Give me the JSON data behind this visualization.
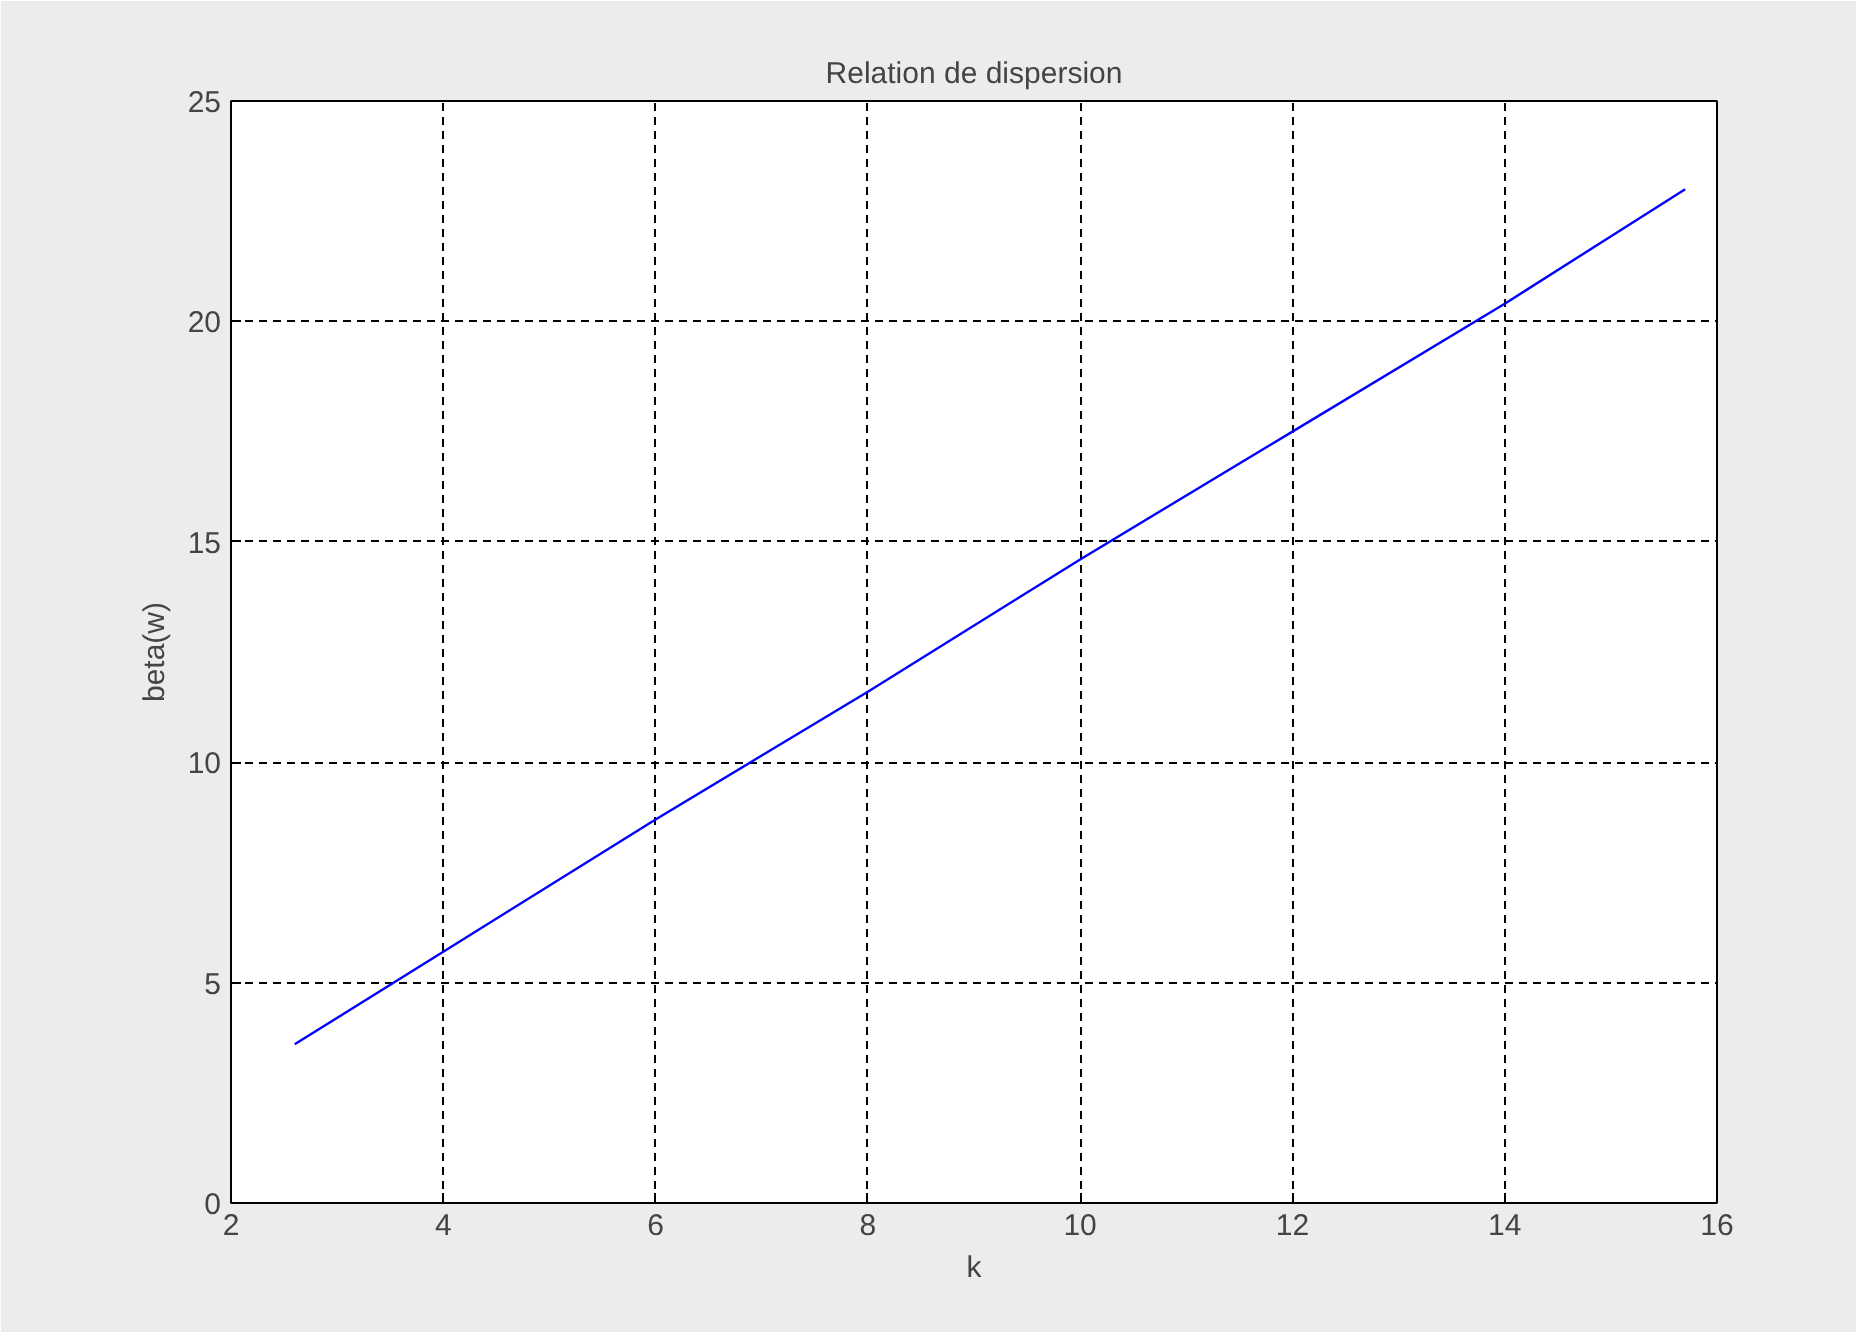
{
  "chart_data": {
    "type": "line",
    "title": "Relation de dispersion",
    "xlabel": "k",
    "ylabel": "beta(w)",
    "x": [
      2.6,
      4,
      6,
      8,
      10,
      12,
      14,
      15.7
    ],
    "series": [
      {
        "color": "#0000ff",
        "values": [
          3.6,
          5.7,
          8.7,
          11.6,
          14.6,
          17.5,
          20.4,
          23.0
        ]
      }
    ],
    "xlim": [
      2,
      16
    ],
    "xticks": [
      2,
      4,
      6,
      8,
      10,
      12,
      14,
      16
    ],
    "ylim": [
      0,
      25
    ],
    "yticks": [
      0,
      5,
      10,
      15,
      20,
      25
    ],
    "grid": true,
    "marker": "none",
    "line_style": "solid"
  }
}
